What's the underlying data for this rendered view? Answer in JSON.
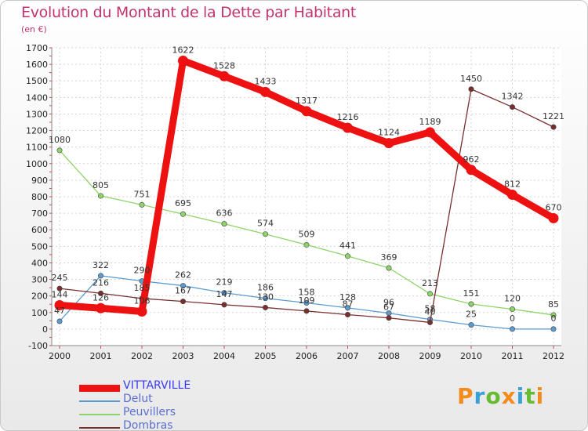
{
  "title": "Evolution du Montant de la Dette par Habitant",
  "subtitle": "(en €)",
  "logo": {
    "text": "Proxiti",
    "colors": [
      "#f28c1e",
      "#3aa0d8",
      "#66bb33",
      "#f28c1e",
      "#3aa0d8",
      "#66bb33",
      "#f28c1e"
    ]
  },
  "chart_data": {
    "type": "line",
    "x": [
      "2000",
      "2001",
      "2002",
      "2003",
      "2004",
      "2005",
      "2006",
      "2007",
      "2008",
      "2009",
      "2010",
      "2011",
      "2012"
    ],
    "ylim": [
      -100,
      1700
    ],
    "yticks": [
      -100,
      0,
      100,
      200,
      300,
      400,
      500,
      600,
      700,
      800,
      900,
      1000,
      1100,
      1200,
      1300,
      1400,
      1500,
      1600,
      1700
    ],
    "grid": true,
    "legend": "bottom-left",
    "series": [
      {
        "name": "VITTARVILLE",
        "color": "#ee1111",
        "values": [
          144,
          126,
          106,
          1622,
          1528,
          1433,
          1317,
          1216,
          1124,
          1189,
          962,
          812,
          670
        ],
        "labels": [
          "144",
          "126",
          "106",
          "1622",
          "1528",
          "1433",
          "1317",
          "1216",
          "1124",
          "1189",
          "962",
          "812",
          "670"
        ]
      },
      {
        "name": "Delut",
        "color": "#5b9bd0",
        "values": [
          47,
          322,
          290,
          262,
          219,
          186,
          158,
          128,
          96,
          58,
          25,
          0,
          0
        ],
        "labels": [
          "47",
          "322",
          "290",
          "262",
          "219",
          "186",
          "158",
          "128",
          "96",
          "58",
          "25",
          "0",
          "0"
        ]
      },
      {
        "name": "Peuvillers",
        "color": "#8fd46a",
        "values": [
          1080,
          805,
          751,
          695,
          636,
          574,
          509,
          441,
          369,
          213,
          151,
          120,
          85
        ],
        "labels": [
          "1080",
          "805",
          "751",
          "695",
          "636",
          "574",
          "509",
          "441",
          "369",
          "213",
          "151",
          "120",
          "85"
        ]
      },
      {
        "name": "Dombras",
        "color": "#7a2e2e",
        "values": [
          245,
          216,
          185,
          167,
          147,
          130,
          109,
          87,
          67,
          40,
          1450,
          1342,
          1221
        ],
        "labels": [
          "245",
          "216",
          "185",
          "167",
          "147",
          "130",
          "109",
          "87",
          "67",
          "40",
          "1450",
          "1342",
          "1221"
        ]
      }
    ]
  }
}
